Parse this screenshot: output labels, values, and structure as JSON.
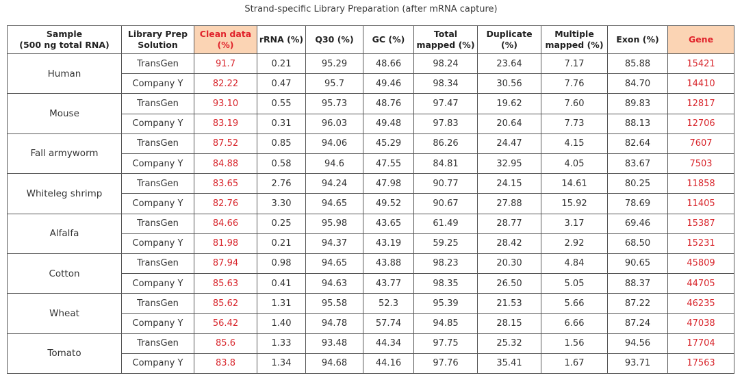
{
  "caption": "Strand-specific Library Preparation (after mRNA capture)",
  "headers": [
    {
      "line1": "Sample",
      "line2": "(500 ng total RNA)"
    },
    {
      "line1": "Library Prep",
      "line2": "Solution"
    },
    {
      "line1": "Clean data",
      "line2": "(%)"
    },
    {
      "line1": "rRNA (%)",
      "line2": ""
    },
    {
      "line1": "Q30 (%)",
      "line2": ""
    },
    {
      "line1": "GC (%)",
      "line2": ""
    },
    {
      "line1": "Total",
      "line2": "mapped (%)"
    },
    {
      "line1": "Duplicate",
      "line2": "(%)"
    },
    {
      "line1": "Multiple",
      "line2": "mapped (%)"
    },
    {
      "line1": "Exon (%)",
      "line2": ""
    },
    {
      "line1": "Gene",
      "line2": ""
    }
  ],
  "groups": [
    {
      "sample": "Human",
      "rows": [
        {
          "solution": "TransGen",
          "clean": "91.7",
          "rrna": "0.21",
          "q30": "95.29",
          "gc": "48.66",
          "total": "98.24",
          "dup": "23.64",
          "multi": "7.17",
          "exon": "85.88",
          "gene": "15421"
        },
        {
          "solution": "Company Y",
          "clean": "82.22",
          "rrna": "0.47",
          "q30": "95.7",
          "gc": "49.46",
          "total": "98.34",
          "dup": "30.56",
          "multi": "7.76",
          "exon": "84.70",
          "gene": "14410"
        }
      ]
    },
    {
      "sample": "Mouse",
      "rows": [
        {
          "solution": "TransGen",
          "clean": "93.10",
          "rrna": "0.55",
          "q30": "95.73",
          "gc": "48.76",
          "total": "97.47",
          "dup": "19.62",
          "multi": "7.60",
          "exon": "89.83",
          "gene": "12817"
        },
        {
          "solution": "Company Y",
          "clean": "83.19",
          "rrna": "0.31",
          "q30": "96.03",
          "gc": "49.48",
          "total": "97.83",
          "dup": "20.64",
          "multi": "7.73",
          "exon": "88.13",
          "gene": "12706"
        }
      ]
    },
    {
      "sample": "Fall armyworm",
      "rows": [
        {
          "solution": "TransGen",
          "clean": "87.52",
          "rrna": "0.85",
          "q30": "94.06",
          "gc": "45.29",
          "total": "86.26",
          "dup": "24.47",
          "multi": "4.15",
          "exon": "82.64",
          "gene": "7607"
        },
        {
          "solution": "Company Y",
          "clean": "84.88",
          "rrna": "0.58",
          "q30": "94.6",
          "gc": "47.55",
          "total": "84.81",
          "dup": "32.95",
          "multi": "4.05",
          "exon": "83.67",
          "gene": "7503"
        }
      ]
    },
    {
      "sample": "Whiteleg shrimp",
      "rows": [
        {
          "solution": "TransGen",
          "clean": "83.65",
          "rrna": "2.76",
          "q30": "94.24",
          "gc": "47.98",
          "total": "90.77",
          "dup": "24.15",
          "multi": "14.61",
          "exon": "80.25",
          "gene": "11858"
        },
        {
          "solution": "Company Y",
          "clean": "82.76",
          "rrna": "3.30",
          "q30": "94.65",
          "gc": "49.52",
          "total": "90.67",
          "dup": "27.88",
          "multi": "15.92",
          "exon": "78.69",
          "gene": "11405"
        }
      ]
    },
    {
      "sample": "Alfalfa",
      "rows": [
        {
          "solution": "TransGen",
          "clean": "84.66",
          "rrna": "0.25",
          "q30": "95.98",
          "gc": "43.65",
          "total": "61.49",
          "dup": "28.77",
          "multi": "3.17",
          "exon": "69.46",
          "gene": "15387"
        },
        {
          "solution": "Company Y",
          "clean": "81.98",
          "rrna": "0.21",
          "q30": "94.37",
          "gc": "43.19",
          "total": "59.25",
          "dup": "28.42",
          "multi": "2.92",
          "exon": "68.50",
          "gene": "15231"
        }
      ]
    },
    {
      "sample": "Cotton",
      "rows": [
        {
          "solution": "TransGen",
          "clean": "87.94",
          "rrna": "0.98",
          "q30": "94.65",
          "gc": "43.88",
          "total": "98.23",
          "dup": "20.30",
          "multi": "4.84",
          "exon": "90.65",
          "gene": "45809"
        },
        {
          "solution": "Company Y",
          "clean": "85.63",
          "rrna": "0.41",
          "q30": "94.63",
          "gc": "43.77",
          "total": "98.35",
          "dup": "26.50",
          "multi": "5.05",
          "exon": "88.37",
          "gene": "44705"
        }
      ]
    },
    {
      "sample": "Wheat",
      "rows": [
        {
          "solution": "TransGen",
          "clean": "85.62",
          "rrna": "1.31",
          "q30": "95.58",
          "gc": "52.3",
          "total": "95.39",
          "dup": "21.53",
          "multi": "5.66",
          "exon": "87.22",
          "gene": "46235"
        },
        {
          "solution": "Company Y",
          "clean": "56.42",
          "rrna": "1.40",
          "q30": "94.78",
          "gc": "57.74",
          "total": "94.85",
          "dup": "28.15",
          "multi": "6.66",
          "exon": "87.24",
          "gene": "47038"
        }
      ]
    },
    {
      "sample": "Tomato",
      "rows": [
        {
          "solution": "TransGen",
          "clean": "85.6",
          "rrna": "1.33",
          "q30": "93.48",
          "gc": "44.34",
          "total": "97.75",
          "dup": "25.32",
          "multi": "1.56",
          "exon": "94.56",
          "gene": "17704"
        },
        {
          "solution": "Company Y",
          "clean": "83.8",
          "rrna": "1.34",
          "q30": "94.68",
          "gc": "44.16",
          "total": "97.76",
          "dup": "35.41",
          "multi": "1.67",
          "exon": "93.71",
          "gene": "17563"
        }
      ]
    }
  ]
}
